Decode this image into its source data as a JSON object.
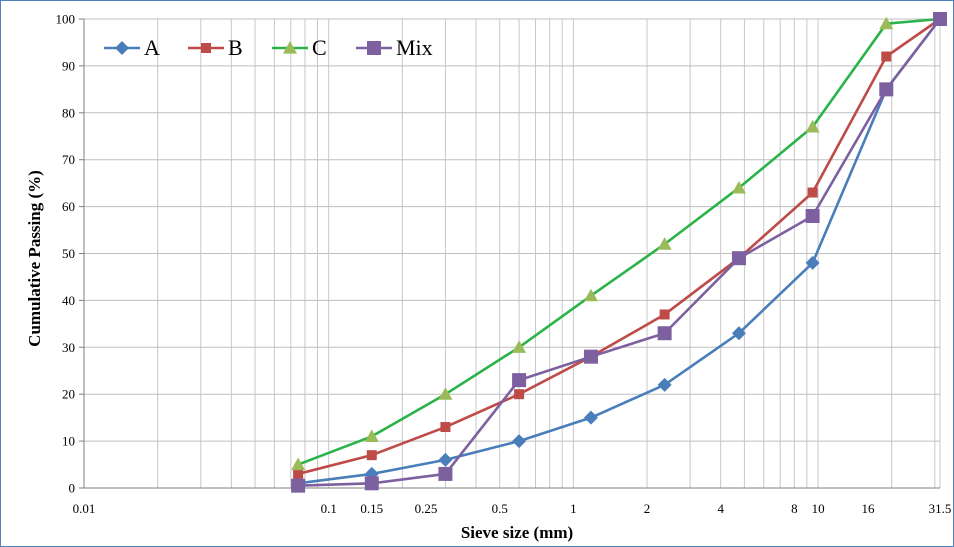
{
  "chart_data": {
    "type": "line",
    "xlabel": "Sieve size (mm)",
    "ylabel": "Cumulative Passing (%)",
    "x_scale": "log",
    "xlim": [
      0.01,
      31.5
    ],
    "ylim": [
      0,
      100
    ],
    "grid": true,
    "legend_position": "top-left",
    "x_tick_labels": [
      "0.01",
      "0.1",
      "0.15",
      "0.25",
      "0.5",
      "1",
      "2",
      "4",
      "8",
      "10",
      "16",
      "31.5"
    ],
    "x_ticks": [
      0.01,
      0.1,
      0.15,
      0.25,
      0.5,
      1,
      2,
      4,
      8,
      10,
      16,
      31.5
    ],
    "y_ticks": [
      0,
      10,
      20,
      30,
      40,
      50,
      60,
      70,
      80,
      90,
      100
    ],
    "x": [
      0.075,
      0.15,
      0.3,
      0.6,
      1.18,
      2.36,
      4.75,
      9.5,
      19,
      37.5
    ],
    "series": [
      {
        "name": "A",
        "color": "#4a7ebb",
        "marker": "diamond",
        "values": [
          1,
          3,
          6,
          10,
          15,
          22,
          33,
          48,
          85,
          100
        ]
      },
      {
        "name": "B",
        "color": "#be4b48",
        "marker": "square-small",
        "values": [
          3,
          7,
          13,
          20,
          28,
          37,
          49,
          63,
          92,
          100
        ]
      },
      {
        "name": "C",
        "color": "#2bb34a",
        "marker_color": "#9bbb59",
        "marker": "triangle",
        "values": [
          5,
          11,
          20,
          30,
          41,
          52,
          64,
          77,
          99,
          100
        ]
      },
      {
        "name": "Mix",
        "color": "#7d60a0",
        "marker": "square",
        "values": [
          0.5,
          1,
          3,
          23,
          28,
          33,
          49,
          58,
          85,
          100
        ]
      }
    ]
  }
}
